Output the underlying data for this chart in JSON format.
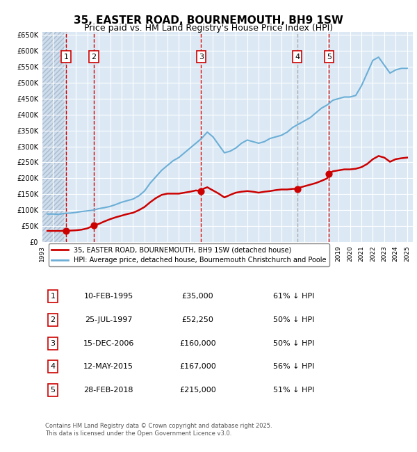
{
  "title": "35, EASTER ROAD, BOURNEMOUTH, BH9 1SW",
  "subtitle": "Price paid vs. HM Land Registry's House Price Index (HPI)",
  "title_fontsize": 11,
  "subtitle_fontsize": 9,
  "background_color": "#ffffff",
  "plot_bg_color": "#dce9f5",
  "grid_color": "#ffffff",
  "hpi_color": "#6baed6",
  "price_color": "#cc0000",
  "legend_line1": "35, EASTER ROAD, BOURNEMOUTH, BH9 1SW (detached house)",
  "legend_line2": "HPI: Average price, detached house, Bournemouth Christchurch and Poole",
  "footer": "Contains HM Land Registry data © Crown copyright and database right 2025.\nThis data is licensed under the Open Government Licence v3.0.",
  "sales": [
    {
      "num": 1,
      "date": "10-FEB-1995",
      "price": 35000,
      "pct": "61% ↓ HPI",
      "year_x": 1995.12
    },
    {
      "num": 2,
      "date": "25-JUL-1997",
      "price": 52250,
      "pct": "50% ↓ HPI",
      "year_x": 1997.57
    },
    {
      "num": 3,
      "date": "15-DEC-2006",
      "price": 160000,
      "pct": "50% ↓ HPI",
      "year_x": 2006.96
    },
    {
      "num": 4,
      "date": "12-MAY-2015",
      "price": 167000,
      "pct": "56% ↓ HPI",
      "year_x": 2015.37
    },
    {
      "num": 5,
      "date": "28-FEB-2018",
      "price": 215000,
      "pct": "51% ↓ HPI",
      "year_x": 2018.16
    }
  ],
  "hpi_data": {
    "years": [
      1993.5,
      1994.0,
      1994.5,
      1995.0,
      1995.5,
      1996.0,
      1996.5,
      1997.0,
      1997.5,
      1998.0,
      1998.5,
      1999.0,
      1999.5,
      2000.0,
      2000.5,
      2001.0,
      2001.5,
      2002.0,
      2002.5,
      2003.0,
      2003.5,
      2004.0,
      2004.5,
      2005.0,
      2005.5,
      2006.0,
      2006.5,
      2007.0,
      2007.5,
      2008.0,
      2008.5,
      2009.0,
      2009.5,
      2010.0,
      2010.5,
      2011.0,
      2011.5,
      2012.0,
      2012.5,
      2013.0,
      2013.5,
      2014.0,
      2014.5,
      2015.0,
      2015.5,
      2016.0,
      2016.5,
      2017.0,
      2017.5,
      2018.0,
      2018.5,
      2019.0,
      2019.5,
      2020.0,
      2020.5,
      2021.0,
      2021.5,
      2022.0,
      2022.5,
      2023.0,
      2023.5,
      2024.0,
      2024.5,
      2025.0
    ],
    "values": [
      88000,
      88000,
      87000,
      90000,
      91000,
      93000,
      96000,
      98000,
      100000,
      105000,
      108000,
      112000,
      118000,
      125000,
      130000,
      135000,
      145000,
      160000,
      185000,
      205000,
      225000,
      240000,
      255000,
      265000,
      280000,
      295000,
      310000,
      325000,
      345000,
      330000,
      305000,
      280000,
      285000,
      295000,
      310000,
      320000,
      315000,
      310000,
      315000,
      325000,
      330000,
      335000,
      345000,
      360000,
      370000,
      380000,
      390000,
      405000,
      420000,
      430000,
      445000,
      450000,
      455000,
      455000,
      460000,
      490000,
      530000,
      570000,
      580000,
      555000,
      530000,
      540000,
      545000,
      545000
    ]
  },
  "price_data": {
    "years": [
      1993.5,
      1994.0,
      1994.5,
      1995.0,
      1995.12,
      1995.5,
      1996.0,
      1996.5,
      1997.0,
      1997.57,
      1998.0,
      1998.5,
      1999.0,
      1999.5,
      2000.0,
      2000.5,
      2001.0,
      2001.5,
      2002.0,
      2002.5,
      2003.0,
      2003.5,
      2004.0,
      2004.5,
      2005.0,
      2005.5,
      2006.0,
      2006.5,
      2006.96,
      2007.0,
      2007.5,
      2008.0,
      2008.5,
      2009.0,
      2009.5,
      2010.0,
      2010.5,
      2011.0,
      2011.5,
      2012.0,
      2012.5,
      2013.0,
      2013.5,
      2014.0,
      2014.5,
      2015.0,
      2015.37,
      2015.5,
      2016.0,
      2016.5,
      2017.0,
      2017.5,
      2018.0,
      2018.16,
      2018.5,
      2019.0,
      2019.5,
      2020.0,
      2020.5,
      2021.0,
      2021.5,
      2022.0,
      2022.5,
      2023.0,
      2023.5,
      2024.0,
      2024.5,
      2025.0
    ],
    "values": [
      35000,
      35000,
      35000,
      35000,
      35000,
      36000,
      37000,
      39000,
      43000,
      52250,
      57000,
      65000,
      72000,
      78000,
      83000,
      88000,
      92000,
      100000,
      110000,
      125000,
      138000,
      148000,
      152000,
      152000,
      152000,
      155000,
      158000,
      162000,
      160000,
      165000,
      172000,
      162000,
      152000,
      140000,
      148000,
      155000,
      158000,
      160000,
      158000,
      155000,
      158000,
      160000,
      163000,
      165000,
      165000,
      167000,
      167000,
      170000,
      175000,
      180000,
      185000,
      192000,
      200000,
      215000,
      222000,
      225000,
      228000,
      228000,
      230000,
      235000,
      245000,
      260000,
      270000,
      265000,
      252000,
      260000,
      263000,
      265000
    ]
  },
  "ylim": [
    0,
    660000
  ],
  "xlim": [
    1993.0,
    2025.5
  ],
  "yticks": [
    0,
    50000,
    100000,
    150000,
    200000,
    250000,
    300000,
    350000,
    400000,
    450000,
    500000,
    550000,
    600000,
    650000
  ],
  "xticks": [
    1993,
    1994,
    1995,
    1996,
    1997,
    1998,
    1999,
    2000,
    2001,
    2002,
    2003,
    2004,
    2005,
    2006,
    2007,
    2008,
    2009,
    2010,
    2011,
    2012,
    2013,
    2014,
    2015,
    2016,
    2017,
    2018,
    2019,
    2020,
    2021,
    2022,
    2023,
    2024,
    2025
  ]
}
